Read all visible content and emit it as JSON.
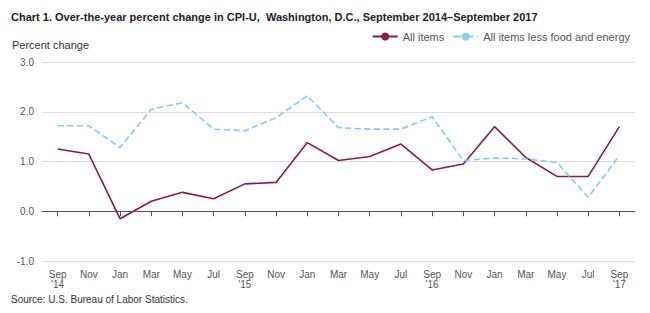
{
  "chart_data": {
    "type": "line",
    "title": "Chart 1. Over-the-year percent change in CPI-U,  Washington, D.C., September 2014–September 2017",
    "y_label": "Percent change",
    "source": "Source: U.S. Bureau of Labor Statistics.",
    "categories": [
      "Sep\n'14",
      "Nov",
      "Jan",
      "Mar",
      "May",
      "Jul",
      "Sep\n'15",
      "Nov",
      "Jan",
      "Mar",
      "May",
      "Jul",
      "Sep\n'16",
      "Nov",
      "Jan",
      "Mar",
      "May",
      "Jul",
      "Sep\n'17"
    ],
    "series": [
      {
        "name": "All items",
        "color": "#8B1A4A",
        "line_style": "solid",
        "values": [
          1.25,
          1.15,
          -0.15,
          0.2,
          0.38,
          0.25,
          0.55,
          0.58,
          1.38,
          1.02,
          1.1,
          1.35,
          0.83,
          0.95,
          1.7,
          1.08,
          0.7,
          0.7,
          1.7
        ]
      },
      {
        "name": "All items less food and energy",
        "color": "#87CEEB",
        "line_style": "dashed",
        "values": [
          1.72,
          1.72,
          1.28,
          2.05,
          2.18,
          1.65,
          1.62,
          1.88,
          2.32,
          1.68,
          1.65,
          1.65,
          1.9,
          1.02,
          1.07,
          1.05,
          0.98,
          0.28,
          1.12
        ]
      }
    ],
    "ylim": [
      -1.0,
      3.0
    ],
    "yticks": [
      {
        "value": -1.0,
        "label": "-1.0"
      },
      {
        "value": 0.0,
        "label": "0.0"
      },
      {
        "value": 1.0,
        "label": "1.0"
      },
      {
        "value": 2.0,
        "label": "2.0"
      },
      {
        "value": 3.0,
        "label": "3.0"
      }
    ],
    "grid": true,
    "legend": "upper right"
  }
}
